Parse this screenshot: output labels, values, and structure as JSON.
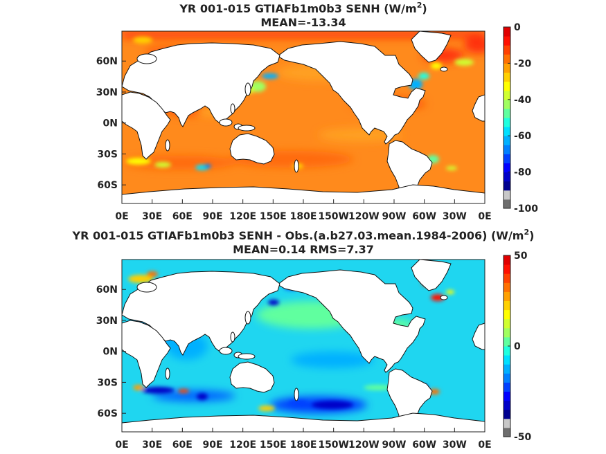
{
  "panels": [
    {
      "title_line1": "YR 001-015 GTIAFb1m0b3  SENH (W/m",
      "title_sup": "2",
      "title_close": ")",
      "title_line2": "MEAN=-13.34",
      "colorbar": {
        "ticks": [
          "0",
          "-20",
          "-40",
          "-60",
          "-80",
          "-100"
        ],
        "range": [
          -100,
          0
        ],
        "colors": [
          "#6e6e6e",
          "#c8c8c8",
          "#00008f",
          "#0000c8",
          "#0000ff",
          "#0040ff",
          "#0080ff",
          "#00b0ff",
          "#00e0ff",
          "#20ffdf",
          "#60ff9f",
          "#a0ff60",
          "#d0ff30",
          "#ffff00",
          "#ffd000",
          "#ffa000",
          "#ff7000",
          "#ff4000",
          "#ff1000",
          "#e00000"
        ]
      },
      "field": {
        "ocean_base": "#ff8a1c",
        "style": "senh"
      }
    },
    {
      "title_line1": "YR 001-015 GTIAFb1m0b3 SENH - Obs.(a.b27.03.mean.1984-2006) (W/m",
      "title_sup": "2",
      "title_close": ")",
      "title_line2": "MEAN=0.14 RMS=7.37",
      "colorbar": {
        "ticks": [
          "50",
          "0",
          "-50"
        ],
        "range": [
          -50,
          50
        ],
        "colors": [
          "#6e6e6e",
          "#c8c8c8",
          "#00008f",
          "#0000c8",
          "#0000ff",
          "#0040ff",
          "#0080ff",
          "#00b0ff",
          "#00e0ff",
          "#20ffdf",
          "#60ff9f",
          "#a0ff60",
          "#d0ff30",
          "#ffff00",
          "#ffd000",
          "#ffa000",
          "#ff7000",
          "#ff4000",
          "#ff1000",
          "#e00000"
        ]
      },
      "field": {
        "ocean_base": "#1fd6f0",
        "style": "diff"
      }
    }
  ],
  "axes": {
    "lon_ticks": [
      "0E",
      "30E",
      "60E",
      "90E",
      "120E",
      "150E",
      "180E",
      "150W",
      "120W",
      "90W",
      "60W",
      "30W",
      "0E"
    ],
    "lat_ticks": [
      "60N",
      "30N",
      "0N",
      "30S",
      "60S"
    ],
    "lat_values": [
      60,
      30,
      0,
      -30,
      -60
    ],
    "lat_range": [
      -78,
      89
    ]
  }
}
